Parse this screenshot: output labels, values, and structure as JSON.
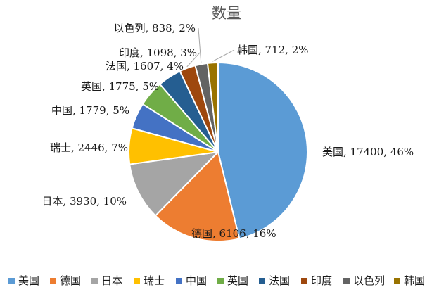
{
  "chart_data": {
    "type": "pie",
    "title": "数量",
    "categories": [
      "美国",
      "德国",
      "日本",
      "瑞士",
      "中国",
      "英国",
      "法国",
      "印度",
      "以色列",
      "韩国"
    ],
    "values": [
      17400,
      6106,
      3930,
      2446,
      1779,
      1775,
      1607,
      1098,
      838,
      712
    ],
    "percent_labels": [
      "46%",
      "16%",
      "10%",
      "7%",
      "5%",
      "5%",
      "4%",
      "3%",
      "2%",
      "2%"
    ],
    "data_labels": [
      "美国, 17400, 46%",
      "德国, 6106, 16%",
      "日本, 3930, 10%",
      "瑞士, 2446, 7%",
      "中国, 1779, 5%",
      "英国, 1775, 5%",
      "法国, 1607, 4%",
      "印度, 1098, 3%",
      "以色列, 838, 2%",
      "韩国, 712, 2%"
    ],
    "colors": [
      "#5B9BD5",
      "#ED7D31",
      "#A5A5A5",
      "#FFC000",
      "#4472C4",
      "#70AD47",
      "#255E91",
      "#9E480E",
      "#636363",
      "#997300"
    ],
    "start_angle": "12 o'clock",
    "direction": "clockwise",
    "legend": "bottom"
  }
}
